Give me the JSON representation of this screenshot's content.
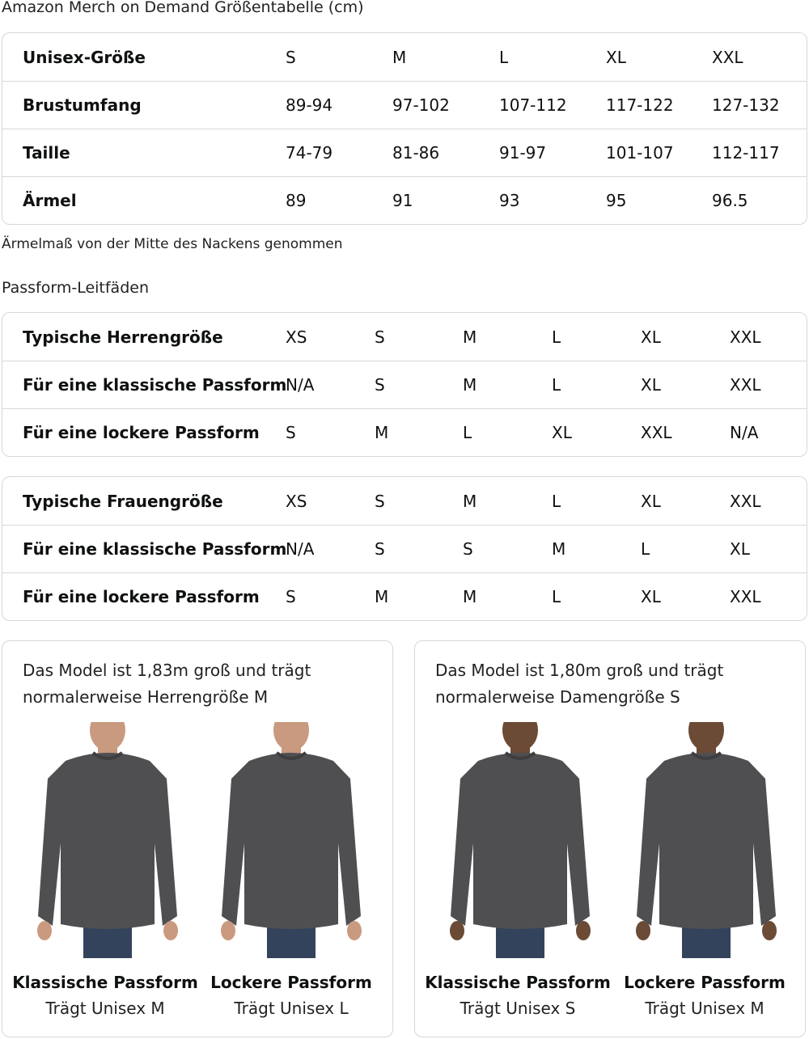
{
  "title": "Amazon Merch on Demand Größentabelle (cm)",
  "size_table": {
    "rows": [
      {
        "label": "Unisex-Größe",
        "values": [
          "S",
          "M",
          "L",
          "XL",
          "XXL"
        ]
      },
      {
        "label": "Brustumfang",
        "values": [
          "89-94",
          "97-102",
          "107-112",
          "117-122",
          "127-132"
        ]
      },
      {
        "label": "Taille",
        "values": [
          "74-79",
          "81-86",
          "91-97",
          "101-107",
          "112-117"
        ]
      },
      {
        "label": "Ärmel",
        "values": [
          "89",
          "91",
          "93",
          "95",
          "96.5"
        ]
      }
    ]
  },
  "note": "Ärmelmaß von der Mitte des Nackens genommen",
  "fit_heading": "Passform-Leitfäden",
  "men_table": {
    "rows": [
      {
        "label": "Typische Herrengröße",
        "values": [
          "XS",
          "S",
          "M",
          "L",
          "XL",
          "XXL"
        ]
      },
      {
        "label": "Für eine klassische Passform",
        "values": [
          "N/A",
          "S",
          "M",
          "L",
          "XL",
          "XXL"
        ]
      },
      {
        "label": "Für eine lockere Passform",
        "values": [
          "S",
          "M",
          "L",
          "XL",
          "XXL",
          "N/A"
        ]
      }
    ]
  },
  "women_table": {
    "rows": [
      {
        "label": "Typische Frauengröße",
        "values": [
          "XS",
          "S",
          "M",
          "L",
          "XL",
          "XXL"
        ]
      },
      {
        "label": "Für eine klassische Passform",
        "values": [
          "N/A",
          "S",
          "S",
          "M",
          "L",
          "XL"
        ]
      },
      {
        "label": "Für eine lockere Passform",
        "values": [
          "S",
          "M",
          "M",
          "L",
          "XL",
          "XXL"
        ]
      }
    ]
  },
  "cards": [
    {
      "caption1": "Das Model ist 1,83m groß und trägt",
      "caption2": "normalerweise Herrengröße M",
      "fits": [
        {
          "title": "Klassische Passform",
          "size": "Trägt Unisex M"
        },
        {
          "title": "Lockere Passform",
          "size": "Trägt Unisex L"
        }
      ]
    },
    {
      "caption1": "Das Model ist 1,80m groß und trägt",
      "caption2": "normalerweise Damengröße S",
      "fits": [
        {
          "title": "Klassische Passform",
          "size": "Trägt Unisex S"
        },
        {
          "title": "Lockere Passform",
          "size": "Trägt Unisex M"
        }
      ]
    }
  ],
  "colors": {
    "sweatshirt": "#4f4f52",
    "jeans": "#33435c",
    "border": "#d5d9d9"
  }
}
